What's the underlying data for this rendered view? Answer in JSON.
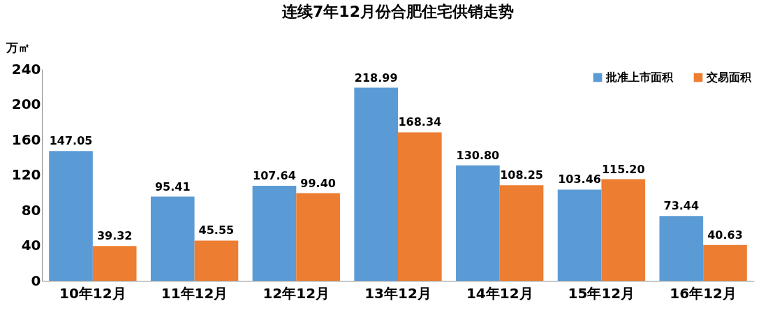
{
  "chart_data": {
    "type": "bar",
    "title": "连续7年12月份合肥住宅供销走势",
    "ylabel": "万㎡",
    "categories": [
      "10年12月",
      "11年12月",
      "12年12月",
      "13年12月",
      "14年12月",
      "15年12月",
      "16年12月"
    ],
    "series": [
      {
        "name": "批准上市面积",
        "color": "#5b9bd5",
        "values": [
          147.05,
          95.41,
          107.64,
          218.99,
          130.8,
          103.46,
          73.44
        ],
        "value_labels": [
          "147.05",
          "95.41",
          "107.64",
          "218.99",
          "130.80",
          "103.46",
          "73.44"
        ]
      },
      {
        "name": "交易面积",
        "color": "#ed7d31",
        "values": [
          39.32,
          45.55,
          99.4,
          168.34,
          108.25,
          115.2,
          40.63
        ],
        "value_labels": [
          "39.32",
          "45.55",
          "99.40",
          "168.34",
          "108.25",
          "115.20",
          "40.63"
        ]
      }
    ],
    "ylim": [
      0,
      240
    ],
    "yticks": [
      0,
      40,
      80,
      120,
      160,
      200,
      240
    ],
    "grid": false,
    "legend": "top right"
  }
}
